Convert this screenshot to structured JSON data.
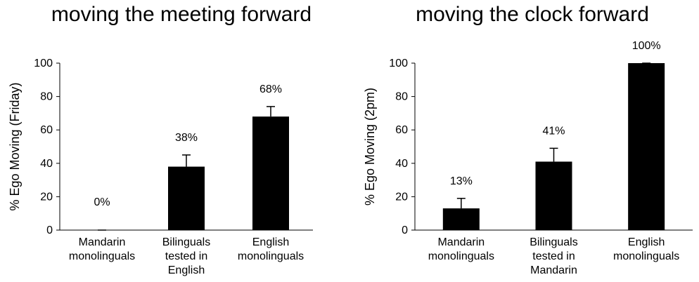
{
  "chart_data": [
    {
      "type": "bar",
      "title": "moving the meeting forward",
      "y_label": "% Ego Moving (Friday)",
      "categories": [
        "Mandarin\nmonolinguals",
        "Bilinguals\ntested in\nEnglish",
        "English\nmonolinguals"
      ],
      "values": [
        0,
        38,
        68
      ],
      "errors": [
        0,
        7,
        6
      ],
      "value_labels": [
        "0%",
        "38%",
        "68%"
      ],
      "color": "#000000",
      "ylim": [
        0,
        100
      ],
      "yticks": [
        0,
        20,
        40,
        60,
        80,
        100
      ]
    },
    {
      "type": "bar",
      "title": "moving the clock forward",
      "y_label": "% Ego Moving (2pm)",
      "categories": [
        "Mandarin\nmonolinguals",
        "Bilinguals\ntested in\nMandarin",
        "English\nmonolinguals"
      ],
      "values": [
        13,
        41,
        100
      ],
      "errors": [
        6,
        8,
        0
      ],
      "value_labels": [
        "13%",
        "41%",
        "100%"
      ],
      "color": "#000000",
      "ylim": [
        0,
        100
      ],
      "yticks": [
        0,
        20,
        40,
        60,
        80,
        100
      ]
    }
  ]
}
